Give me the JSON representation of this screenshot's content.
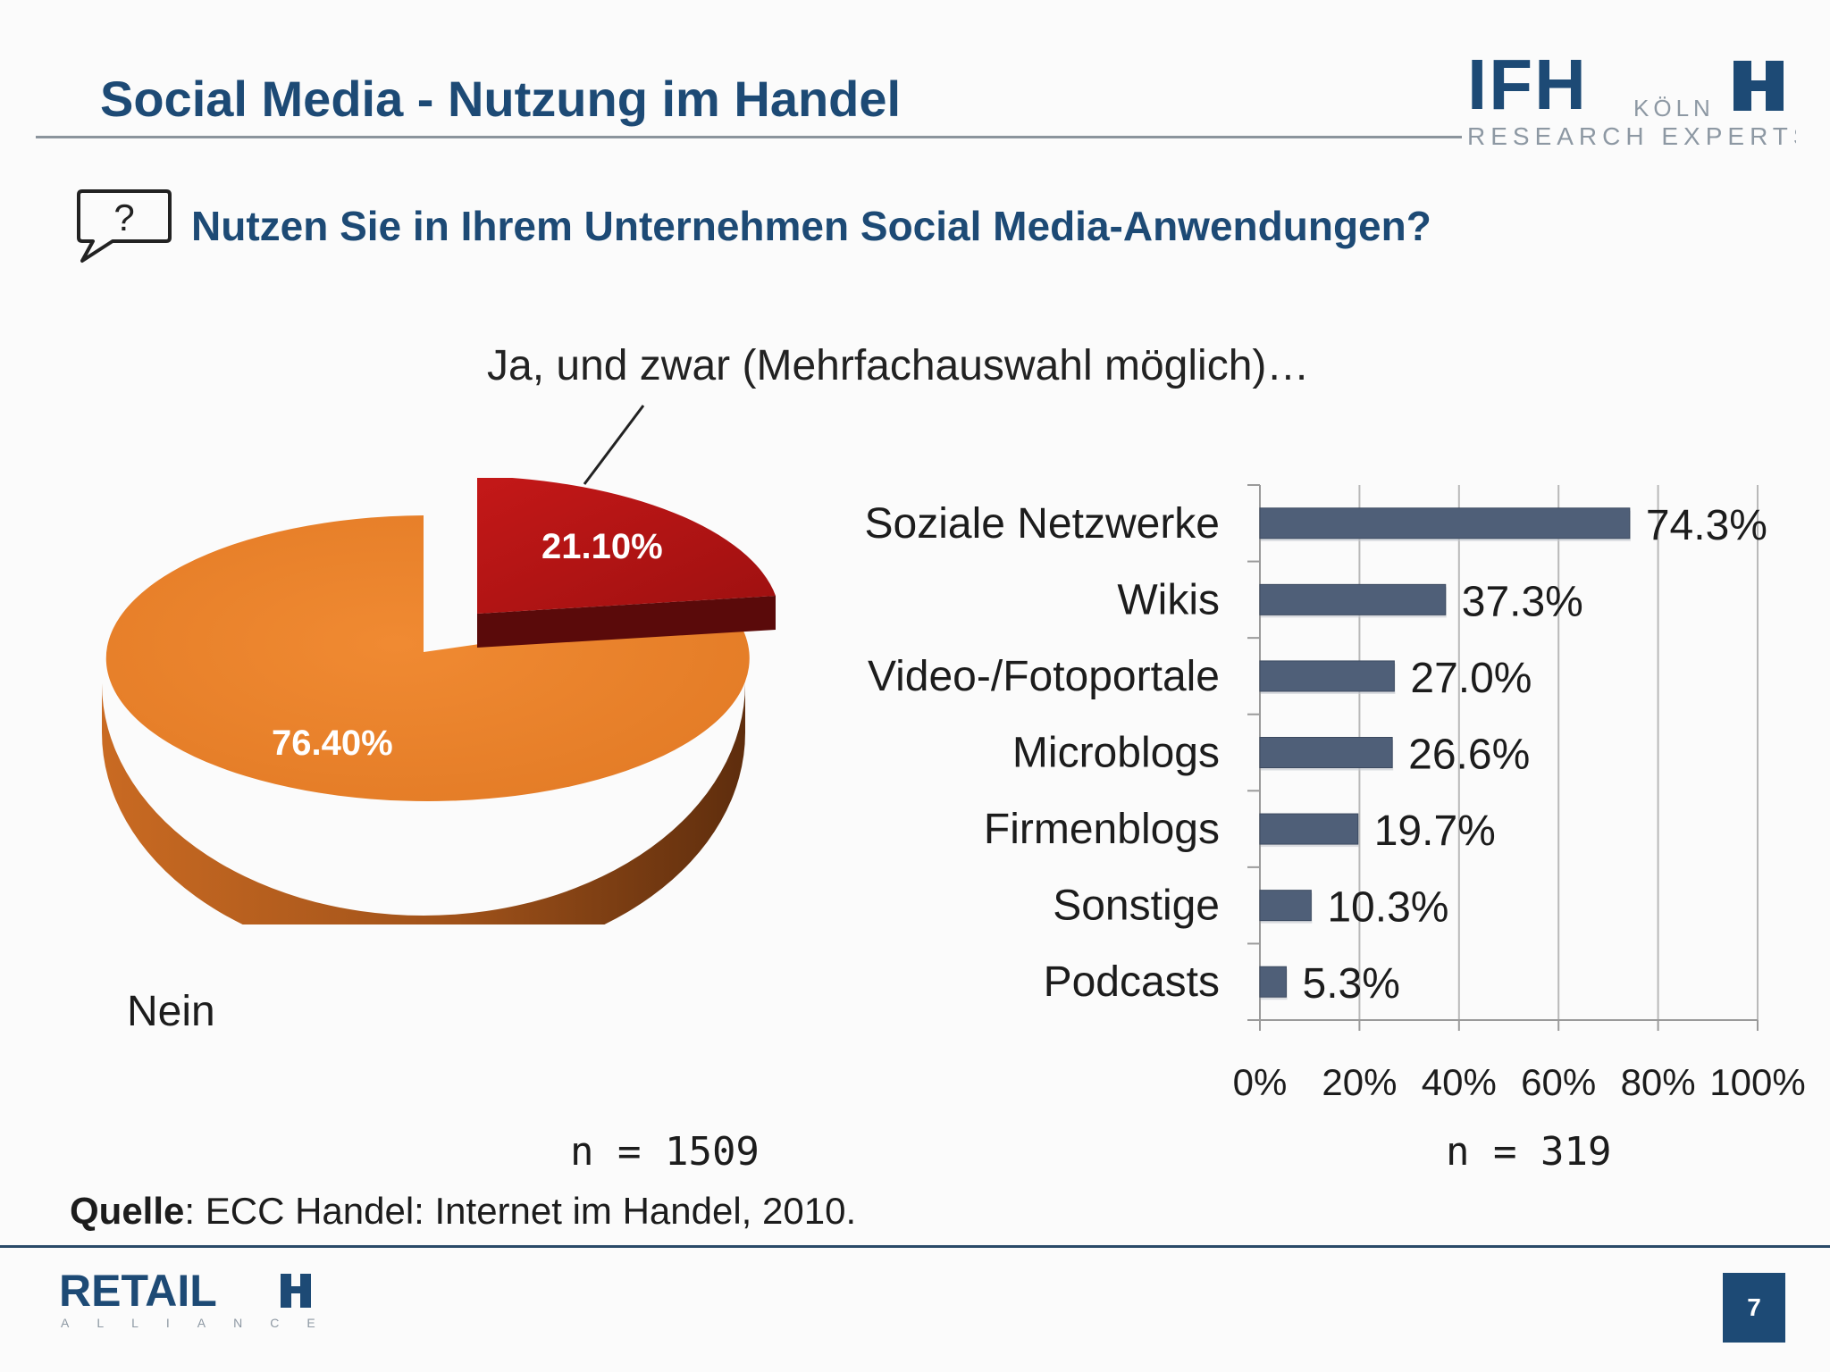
{
  "header": {
    "title": "Social Media - Nutzung im Handel",
    "logo": {
      "brand": "IFH",
      "city": "KÖLN",
      "tagline": "RESEARCH EXPERTS"
    }
  },
  "question": {
    "icon": "question-bubble-icon",
    "icon_glyph": "?",
    "text": "Nutzen Sie in Ihrem Unternehmen Social Media-Anwendungen?"
  },
  "callout_text": "Ja, und zwar (Mehrfachauswahl möglich)…",
  "pie_chart": {
    "nein_label": "Nein",
    "n": "n = 1509"
  },
  "bar_chart": {
    "n": "n = 319"
  },
  "chart_data": [
    {
      "type": "pie",
      "slices": [
        {
          "label": "Nein",
          "value": 76.4,
          "display": "76.40%",
          "color": "#e8802c"
        },
        {
          "label": "Ja",
          "value": 21.1,
          "display": "21.10%",
          "color": "#b01414"
        }
      ]
    },
    {
      "type": "bar",
      "orientation": "horizontal",
      "categories": [
        "Soziale Netzwerke",
        "Wikis",
        "Video-/Fotoportale",
        "Microblogs",
        "Firmenblogs",
        "Sonstige",
        "Podcasts"
      ],
      "values": [
        74.3,
        37.3,
        27.0,
        26.6,
        19.7,
        10.3,
        5.3
      ],
      "value_labels": [
        "74.3%",
        "37.3%",
        "27.0%",
        "26.6%",
        "19.7%",
        "10.3%",
        "5.3%"
      ],
      "xlim": [
        0,
        100
      ],
      "x_ticks": [
        0,
        20,
        40,
        60,
        80,
        100
      ],
      "x_tick_labels": [
        "0%",
        "20%",
        "40%",
        "60%",
        "80%",
        "100%"
      ],
      "bar_color": "#4f5f78",
      "grid": true
    }
  ],
  "source": {
    "label": "Quelle",
    "text": ": ECC Handel: Internet im Handel, 2010."
  },
  "footer": {
    "logo_text": "RETAIL",
    "logo_sub": "ALLIANCE",
    "page_number": "7"
  }
}
